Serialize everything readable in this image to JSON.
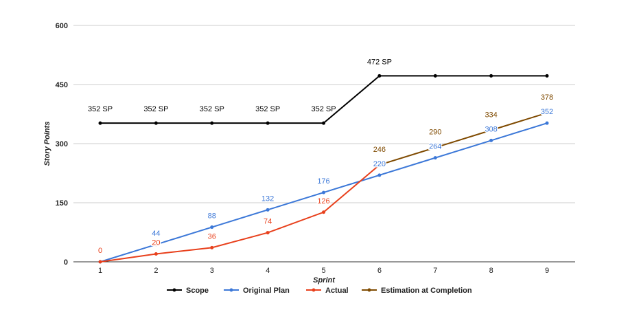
{
  "chart_data": {
    "type": "line",
    "title": "",
    "xlabel": "Sprint",
    "ylabel": "Story Points",
    "x": [
      1,
      2,
      3,
      4,
      5,
      6,
      7,
      8,
      9
    ],
    "ylim": [
      0,
      600
    ],
    "yticks": [
      0,
      150,
      300,
      450,
      600
    ],
    "grid": true,
    "legend_position": "bottom",
    "series": [
      {
        "name": "Scope",
        "color": "#000000",
        "x": [
          1,
          2,
          3,
          4,
          5,
          6,
          7,
          8,
          9
        ],
        "values": [
          352,
          352,
          352,
          352,
          352,
          472,
          472,
          472,
          472
        ],
        "labels": [
          "352 SP",
          "352 SP",
          "352 SP",
          "352 SP",
          "352 SP",
          "472 SP",
          "",
          "",
          ""
        ]
      },
      {
        "name": "Original Plan",
        "color": "#3c78d8",
        "x": [
          1,
          2,
          3,
          4,
          5,
          6,
          7,
          8,
          9
        ],
        "values": [
          0,
          44,
          88,
          132,
          176,
          220,
          264,
          308,
          352
        ],
        "labels": [
          "",
          "44",
          "88",
          "132",
          "176",
          "220",
          "264",
          "308",
          "352"
        ]
      },
      {
        "name": "Actual",
        "color": "#e8401c",
        "x": [
          1,
          2,
          3,
          4,
          5,
          6
        ],
        "values": [
          0,
          20,
          36,
          74,
          126,
          246
        ],
        "labels": [
          "0",
          "20",
          "36",
          "74",
          "126",
          ""
        ]
      },
      {
        "name": "Estimation at Completion",
        "color": "#7f4a00",
        "x": [
          6,
          7,
          8,
          9
        ],
        "values": [
          246,
          290,
          334,
          378
        ],
        "labels": [
          "246",
          "290",
          "334",
          "378"
        ]
      }
    ]
  }
}
